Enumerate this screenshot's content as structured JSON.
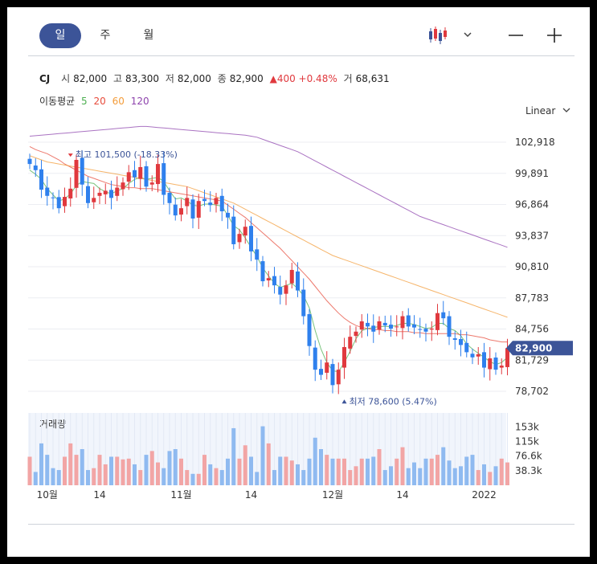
{
  "tabs": [
    "일",
    "주",
    "월"
  ],
  "info": {
    "name": "CJ",
    "open_label": "시",
    "open": "82,000",
    "high_label": "고",
    "high": "83,300",
    "low_label": "저",
    "low": "82,000",
    "close_label": "종",
    "close": "82,900",
    "change": "▲400 +0.48%",
    "volume_label": "거",
    "volume": "68,631"
  },
  "ma_legend": {
    "label": "이동평균",
    "items": [
      {
        "label": "5",
        "color": "#4caf50"
      },
      {
        "label": "20",
        "color": "#e74c3c"
      },
      {
        "label": "60",
        "color": "#f39c3a"
      },
      {
        "label": "120",
        "color": "#8e44ad"
      }
    ]
  },
  "scale_mode": "Linear",
  "volume_label": "거래량",
  "chart_data": {
    "type": "candlestick",
    "y_ticks": [
      "102,918",
      "99,891",
      "96,864",
      "93,837",
      "90,810",
      "87,783",
      "84,756",
      "81,729",
      "78,702"
    ],
    "y_tick_values": [
      102918,
      99891,
      96864,
      93837,
      90810,
      87783,
      84756,
      81729,
      78702
    ],
    "current_price_label": "82,900",
    "current_price": 82900,
    "x_labels": [
      {
        "label": "10월",
        "index": 3
      },
      {
        "label": "14",
        "index": 12
      },
      {
        "label": "11월",
        "index": 26
      },
      {
        "label": "14",
        "index": 38
      },
      {
        "label": "12월",
        "index": 52
      },
      {
        "label": "14",
        "index": 64
      },
      {
        "label": "2022",
        "index": 78
      }
    ],
    "high_annotation": {
      "text": "최고 101,500 (-18.33%)",
      "index": 7,
      "value": 101500
    },
    "low_annotation": {
      "text": "최저 78,600 (5.47%)",
      "index": 54,
      "value": 78600
    },
    "volume_ticks": [
      "153k",
      "115k",
      "76.6k",
      "38.3k"
    ],
    "volume_tick_values": [
      153000,
      115000,
      76600,
      38300
    ],
    "volume_max": 190000,
    "closes": [
      100800,
      100200,
      98300,
      97700,
      97500,
      96500,
      97600,
      98400,
      101200,
      98800,
      97000,
      97500,
      98000,
      98200,
      97500,
      98500,
      99000,
      100000,
      99500,
      100500,
      98600,
      99000,
      100800,
      97800,
      97000,
      95800,
      96500,
      97500,
      95500,
      97200,
      97200,
      96800,
      97500,
      96200,
      95600,
      93000,
      94000,
      94700,
      92300,
      91500,
      89400,
      89700,
      89000,
      88100,
      89000,
      90500,
      88500,
      86000,
      83100,
      80800,
      80300,
      81500,
      79300,
      80800,
      83000,
      84000,
      84500,
      85500,
      85000,
      84500,
      85500,
      85100,
      84800,
      85000,
      86000,
      85000,
      84900,
      84700,
      84500,
      84800,
      86300,
      85800,
      84000,
      83700,
      83200,
      82500,
      82000,
      82300,
      81000,
      81900,
      80800,
      81200,
      82900
    ],
    "series": [
      {
        "name": "5",
        "color": "#4caf50",
        "values": [
          100200,
          99800,
          99300,
          98400,
          97800,
          97200,
          97400,
          97900,
          98700,
          99100,
          99000,
          98900,
          98400,
          98100,
          97900,
          98200,
          98400,
          98900,
          99300,
          99500,
          99300,
          99400,
          99500,
          99100,
          98200,
          97400,
          97500,
          97200,
          96800,
          96700,
          96900,
          96900,
          96800,
          96700,
          95800,
          94800,
          94400,
          93600,
          92700,
          91800,
          90700,
          89900,
          89200,
          88800,
          89000,
          89200,
          88700,
          88000,
          86800,
          84600,
          82800,
          81500,
          80700,
          80600,
          81500,
          82600,
          83800,
          84600,
          84800,
          84900,
          85000,
          85000,
          85000,
          85100,
          85300,
          85300,
          85200,
          85000,
          84800,
          84900,
          85300,
          85300,
          84800,
          84600,
          84100,
          83300,
          82800,
          82400,
          82000,
          81600,
          81300,
          81500,
          82000
        ]
      },
      {
        "name": "20",
        "color": "#e74c3c",
        "values": [
          102500,
          102200,
          102000,
          101800,
          101500,
          101200,
          100800,
          100500,
          100200,
          99900,
          99600,
          99400,
          99200,
          99000,
          98800,
          98700,
          98600,
          98500,
          98500,
          98400,
          98400,
          98400,
          98300,
          98200,
          98100,
          98000,
          97900,
          97800,
          97700,
          97600,
          97500,
          97400,
          97300,
          97200,
          96800,
          96400,
          96000,
          95600,
          95100,
          94600,
          94100,
          93600,
          93100,
          92600,
          92000,
          91400,
          90800,
          90200,
          89600,
          88900,
          88200,
          87500,
          86900,
          86300,
          85800,
          85400,
          85100,
          84900,
          84800,
          84700,
          84700,
          84600,
          84600,
          84500,
          84500,
          84500,
          84400,
          84400,
          84300,
          84300,
          84300,
          84300,
          84300,
          84300,
          84200,
          84200,
          84100,
          84000,
          83900,
          83700,
          83600,
          83500,
          83500
        ]
      },
      {
        "name": "60",
        "color": "#f39c3a",
        "values": [
          101600,
          101400,
          101200,
          101000,
          100900,
          100800,
          100700,
          100600,
          100500,
          100400,
          100300,
          100200,
          100100,
          100000,
          99900,
          99800,
          99700,
          99600,
          99500,
          99400,
          99300,
          99200,
          99100,
          99000,
          98900,
          98800,
          98700,
          98600,
          98400,
          98200,
          98000,
          97800,
          97600,
          97400,
          97200,
          97000,
          96700,
          96400,
          96100,
          95800,
          95500,
          95200,
          94900,
          94600,
          94300,
          94000,
          93700,
          93400,
          93100,
          92800,
          92500,
          92200,
          91900,
          91700,
          91500,
          91300,
          91100,
          90900,
          90700,
          90500,
          90300,
          90100,
          89900,
          89700,
          89500,
          89300,
          89100,
          88900,
          88700,
          88500,
          88300,
          88100,
          87900,
          87700,
          87500,
          87300,
          87100,
          86900,
          86700,
          86500,
          86300,
          86100,
          85900
        ]
      },
      {
        "name": "120",
        "color": "#8e44ad",
        "values": [
          103500,
          103550,
          103600,
          103650,
          103700,
          103750,
          103800,
          103850,
          103900,
          103950,
          104000,
          104050,
          104100,
          104150,
          104200,
          104250,
          104300,
          104350,
          104400,
          104450,
          104450,
          104400,
          104350,
          104300,
          104250,
          104200,
          104150,
          104100,
          104050,
          104000,
          103950,
          103900,
          103850,
          103800,
          103750,
          103700,
          103650,
          103600,
          103500,
          103400,
          103200,
          103000,
          102800,
          102600,
          102400,
          102200,
          102000,
          101700,
          101400,
          101100,
          100800,
          100500,
          100200,
          99900,
          99600,
          99300,
          99000,
          98700,
          98400,
          98100,
          97800,
          97500,
          97200,
          96900,
          96600,
          96300,
          96000,
          95700,
          95500,
          95300,
          95100,
          94900,
          94700,
          94500,
          94300,
          94100,
          93900,
          93700,
          93500,
          93300,
          93100,
          92900,
          92700
        ]
      }
    ],
    "volume": [
      75000,
      35000,
      110000,
      80000,
      45000,
      40000,
      75000,
      110000,
      80000,
      95000,
      40000,
      45000,
      80000,
      55000,
      75000,
      75000,
      68000,
      70000,
      55000,
      40000,
      80000,
      90000,
      60000,
      45000,
      90000,
      95000,
      70000,
      40000,
      30000,
      30000,
      80000,
      55000,
      45000,
      40000,
      70000,
      150000,
      70000,
      105000,
      75000,
      35000,
      155000,
      110000,
      40000,
      75000,
      75000,
      65000,
      55000,
      40000,
      70000,
      125000,
      95000,
      80000,
      70000,
      70000,
      70000,
      40000,
      50000,
      70000,
      70000,
      75000,
      95000,
      40000,
      50000,
      70000,
      100000,
      45000,
      60000,
      45000,
      70000,
      70000,
      80000,
      100000,
      65000,
      45000,
      50000,
      75000,
      80000,
      40000,
      55000,
      35000,
      50000,
      70000,
      60000
    ]
  }
}
